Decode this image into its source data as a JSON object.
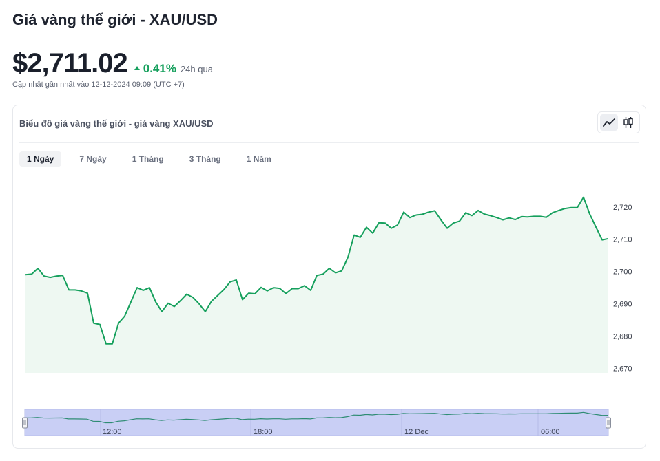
{
  "header": {
    "title": "Giá vàng thế giới - XAU/USD",
    "price": "$2,711.02",
    "change_pct": "0.41%",
    "change_period": "24h qua",
    "updated": "Cập nhật gần nhất vào 12-12-2024 09:09 (UTC +7)"
  },
  "card": {
    "title": "Biểu đồ giá vàng thế giới - giá vàng XAU/USD",
    "tabs": [
      {
        "label": "1 Ngày",
        "active": true
      },
      {
        "label": "7 Ngày",
        "active": false
      },
      {
        "label": "1 Tháng",
        "active": false
      },
      {
        "label": "3 Tháng",
        "active": false
      },
      {
        "label": "1 Năm",
        "active": false
      }
    ],
    "chart_type_buttons": [
      {
        "icon": "line-chart-icon",
        "active": true
      },
      {
        "icon": "candlestick-chart-icon",
        "active": false
      }
    ]
  },
  "colors": {
    "line": "#16a05d",
    "area": "#eef8f2",
    "navigator_fill": "#c9cff5",
    "price_up": "#16a05d"
  },
  "chart_data": {
    "type": "area",
    "title": "",
    "xlabel": "",
    "ylabel": "",
    "ylim": [
      2670,
      2730
    ],
    "y_ticks": [
      2670,
      2680,
      2690,
      2700,
      2710,
      2720
    ],
    "y_tick_labels": [
      "2,670",
      "2,680",
      "2,690",
      "2,700",
      "2,710",
      "2,720"
    ],
    "navigator_labels": [
      "12:00",
      "18:00",
      "12 Dec",
      "06:00"
    ],
    "grid": false,
    "series": [
      {
        "values": [
          2699,
          2699.2,
          2701,
          2698.6,
          2698.2,
          2698.6,
          2698.8,
          2694.3,
          2694.3,
          2694,
          2693.3,
          2684,
          2683.6,
          2677.6,
          2677.6,
          2684,
          2686.2,
          2690.6,
          2695,
          2694.2,
          2695,
          2690.6,
          2687.6,
          2690.2,
          2689.2,
          2691,
          2693,
          2692,
          2690,
          2687.6,
          2690.8,
          2692.6,
          2694.4,
          2696.8,
          2697.4,
          2691.3,
          2693.3,
          2693.1,
          2695.1,
          2694,
          2695,
          2694.8,
          2693.2,
          2694.7,
          2694.7,
          2695.6,
          2694.2,
          2698.8,
          2699.2,
          2701,
          2699.6,
          2700.2,
          2704.4,
          2711.3,
          2710.6,
          2713.7,
          2711.9,
          2715.1,
          2715,
          2713.4,
          2714.4,
          2718.4,
          2716.7,
          2717.5,
          2717.7,
          2718.4,
          2718.8,
          2716,
          2713.4,
          2715,
          2715.6,
          2718.2,
          2717.3,
          2718.9,
          2717.8,
          2717.3,
          2716.7,
          2716,
          2716.6,
          2716.1,
          2717,
          2716.9,
          2717.1,
          2717.1,
          2716.8,
          2718.2,
          2718.9,
          2719.5,
          2719.8,
          2719.8,
          2723,
          2717.8,
          2713.8,
          2709.8,
          2710.2
        ]
      }
    ]
  }
}
